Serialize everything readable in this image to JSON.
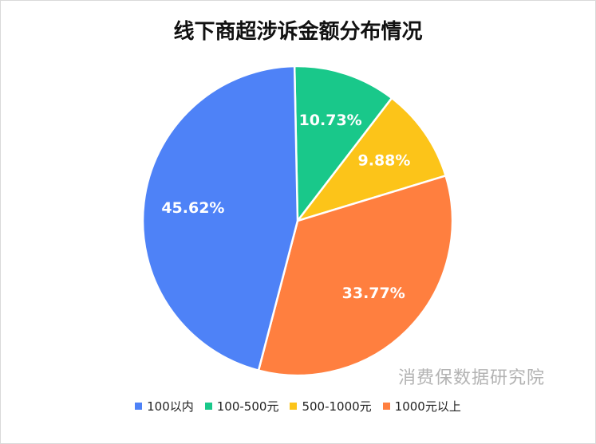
{
  "chart_data": {
    "type": "pie",
    "title": "线下商超涉诉金额分布情况",
    "categories": [
      "100以内",
      "100-500元",
      "500-1000元",
      "1000元以上"
    ],
    "values": [
      45.62,
      10.73,
      9.88,
      33.77
    ],
    "labels": [
      "45.62%",
      "10.73%",
      "9.88%",
      "33.77%"
    ],
    "colors": [
      "#4e82f7",
      "#19c88a",
      "#fcc419",
      "#ff7f3f"
    ],
    "legend_position": "bottom",
    "start_category": "100-500元",
    "direction": "clockwise"
  },
  "watermark": "消费保数据研究院"
}
